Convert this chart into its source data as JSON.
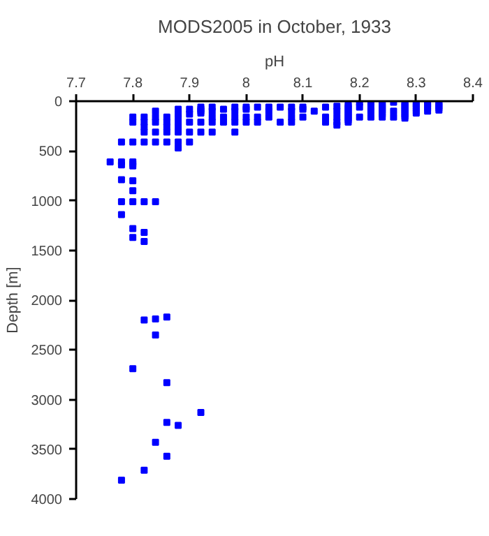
{
  "chart_data": {
    "type": "scatter",
    "title": "MODS2005 in October, 1933",
    "xlabel": "pH",
    "ylabel": "Depth [m]",
    "xlim": [
      7.7,
      8.4
    ],
    "xticks": [
      7.7,
      7.8,
      7.9,
      8,
      8.1,
      8.2,
      8.3,
      8.4
    ],
    "ylim": [
      4000,
      0
    ],
    "yticks": [
      0,
      500,
      1000,
      1500,
      2000,
      2500,
      3000,
      3500,
      4000
    ],
    "grid": false,
    "marker": "square",
    "series": [
      {
        "color": "#0000ff",
        "x": [
          7.76,
          7.78,
          7.78,
          7.78,
          7.8,
          7.8,
          7.8,
          7.8,
          7.8,
          7.8,
          7.82,
          7.82,
          7.82,
          7.82,
          7.82,
          7.84,
          7.84,
          7.84,
          7.84,
          7.84,
          7.86,
          7.86,
          7.86,
          7.86,
          7.86,
          7.88,
          7.88,
          7.88,
          7.88,
          7.88,
          7.88,
          7.88,
          7.88,
          7.9,
          7.9,
          7.9,
          7.9,
          7.9,
          7.92,
          7.92,
          7.92,
          7.92,
          7.92,
          7.92,
          7.94,
          7.94,
          7.94,
          7.94,
          7.94,
          7.96,
          7.96,
          7.96,
          7.98,
          7.98,
          7.98,
          7.98,
          7.98,
          8.0,
          8.0,
          8.0,
          8.0,
          8.02,
          8.02,
          8.02,
          8.04,
          8.04,
          8.04,
          8.06,
          8.06,
          8.08,
          8.08,
          8.08,
          8.08,
          8.1,
          8.1,
          8.1,
          8.12,
          8.14,
          8.14,
          8.14,
          8.16,
          8.16,
          8.16,
          8.16,
          8.16,
          8.18,
          8.18,
          8.18,
          8.18,
          8.18,
          8.18,
          8.18,
          8.18,
          8.18,
          8.18,
          8.2,
          8.2,
          8.2,
          8.22,
          8.22,
          8.22,
          8.22,
          8.24,
          8.24,
          8.24,
          8.24,
          8.24,
          8.24,
          8.24,
          8.24,
          8.26,
          8.26,
          8.26,
          8.28,
          8.28,
          8.28,
          8.28,
          8.28,
          8.28,
          8.28,
          8.28,
          8.28,
          8.3,
          8.3,
          8.3,
          8.3,
          8.3,
          8.3,
          8.32,
          8.32,
          8.32,
          8.32,
          8.32,
          8.34,
          8.34,
          8.34,
          8.34,
          8.34,
          7.78,
          7.8,
          7.8,
          7.78,
          7.8,
          7.82,
          7.84,
          7.78,
          7.8,
          7.82,
          7.8,
          7.82,
          7.82,
          7.84,
          7.86,
          7.84,
          7.8,
          7.86,
          7.92,
          7.86,
          7.88,
          7.84,
          7.86,
          7.82,
          7.78
        ],
        "values": [
          610,
          410,
          610,
          640,
          160,
          210,
          410,
          610,
          630,
          650,
          160,
          210,
          260,
          310,
          410,
          100,
          160,
          210,
          310,
          410,
          160,
          210,
          260,
          310,
          410,
          80,
          130,
          160,
          210,
          260,
          310,
          410,
          470,
          80,
          130,
          210,
          310,
          410,
          60,
          80,
          100,
          120,
          210,
          310,
          60,
          100,
          160,
          210,
          310,
          80,
          160,
          210,
          60,
          100,
          160,
          210,
          310,
          60,
          80,
          160,
          210,
          60,
          160,
          210,
          60,
          100,
          160,
          60,
          210,
          60,
          100,
          160,
          210,
          60,
          80,
          160,
          100,
          60,
          160,
          210,
          50,
          100,
          160,
          210,
          240,
          30,
          50,
          70,
          90,
          110,
          130,
          150,
          170,
          190,
          210,
          10,
          60,
          160,
          10,
          60,
          100,
          160,
          10,
          30,
          50,
          70,
          90,
          110,
          130,
          160,
          10,
          100,
          160,
          10,
          30,
          50,
          70,
          90,
          110,
          130,
          150,
          170,
          10,
          30,
          50,
          70,
          100,
          120,
          10,
          30,
          50,
          70,
          100,
          10,
          30,
          50,
          70,
          90,
          790,
          800,
          900,
          1010,
          1010,
          1010,
          1010,
          1140,
          1280,
          1320,
          1370,
          1410,
          2200,
          2190,
          2170,
          2350,
          2690,
          2830,
          3130,
          3230,
          3260,
          3430,
          3570,
          3710,
          3810
        ]
      }
    ]
  }
}
